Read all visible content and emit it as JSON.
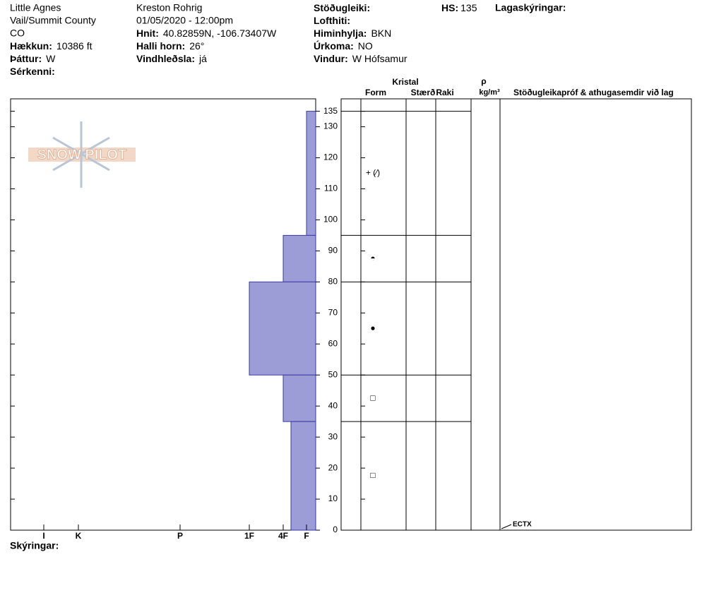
{
  "header": {
    "col1": {
      "lines": [
        "Little Agnes",
        "Vail/Summit County",
        "CO"
      ],
      "fields": [
        {
          "label": "Hækkun:",
          "value": "10386 ft"
        },
        {
          "label": "Þáttur:",
          "value": "W"
        },
        {
          "label": "Sérkenni:"
        }
      ]
    },
    "col2": {
      "lines": [
        "Kreston Rohrig",
        "01/05/2020 - 12:00pm"
      ],
      "fields": [
        {
          "label": "Hnit:",
          "value": "40.82859N, -106.73407W"
        },
        {
          "label": "Halli horn:",
          "value": "26°"
        },
        {
          "label": "Vindhleðsla:",
          "value": "já"
        }
      ]
    },
    "col3": {
      "fields": [
        {
          "label": "Stöðugleiki:"
        },
        {
          "label": "Lofthiti:"
        },
        {
          "label": "Himinhylja:",
          "value": "BKN"
        },
        {
          "label": "Úrkoma:",
          "value": "NO"
        },
        {
          "label": "Vindur:",
          "value": "W Hófsamur"
        }
      ]
    },
    "hs": {
      "label": "HS:",
      "value": 135
    },
    "layer_notes": "Lagaskýringar:",
    "notes": "Skýringar:",
    "logo": "SNOW PILOT"
  },
  "table": {
    "crystal": "Kristal",
    "form": "Form",
    "size": "Stærð",
    "moisture": "Raki",
    "rho": "ρ",
    "density_unit": "kg/m³",
    "stability": "Stöðugleikapróf & athugasemdir við lag"
  },
  "chart_data": {
    "type": "profile",
    "ylim": [
      0,
      139
    ],
    "yticks": [
      0,
      10,
      20,
      30,
      40,
      50,
      60,
      70,
      80,
      90,
      100,
      110,
      120,
      130,
      135
    ],
    "xlim": [
      0,
      432
    ],
    "xticks": [
      {
        "value": 385,
        "label": "I"
      },
      {
        "value": 336,
        "label": "K"
      },
      {
        "value": 192,
        "label": "P"
      },
      {
        "value": 94,
        "label": "1F"
      },
      {
        "value": 46,
        "label": "4F"
      },
      {
        "value": 13,
        "label": "F"
      }
    ],
    "color": "#9c9cd6",
    "layers": [
      {
        "top": 135,
        "bottom": 95,
        "hardness": 13,
        "form": "+ (⁄)"
      },
      {
        "top": 95,
        "bottom": 80,
        "hardness": 46,
        "form": "◓"
      },
      {
        "top": 80,
        "bottom": 50,
        "hardness": 94,
        "form": "●"
      },
      {
        "top": 50,
        "bottom": 35,
        "hardness": 46,
        "form": "□"
      },
      {
        "top": 35,
        "bottom": 0,
        "hardness": 35,
        "form": "□"
      }
    ],
    "tests": [
      {
        "depth": 0,
        "label": "ECTX"
      }
    ]
  }
}
